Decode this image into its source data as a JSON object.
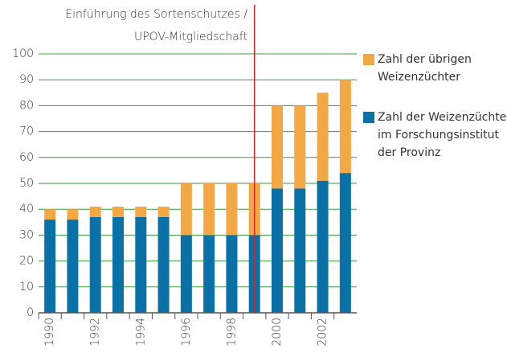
{
  "chart_data": {
    "type": "stacked_bar",
    "annotation": [
      "Einführung des Sortenschutzes /",
      "UPOV-Mitgliedschaft"
    ],
    "categories": [
      "1990",
      null,
      "1992",
      null,
      "1994",
      null,
      "1996",
      null,
      "1998",
      null,
      "2000",
      null,
      "2002",
      null
    ],
    "series": [
      {
        "name": "Zahl der Weizenzüchter\nim Forschungsinstitut\nder Provinz",
        "color": "#0a71a7",
        "values": [
          36,
          36,
          37,
          37,
          37,
          37,
          30,
          30,
          30,
          30,
          48,
          48,
          51,
          54
        ]
      },
      {
        "name": "Zahl der übrigen\nWeizenzüchter",
        "color": "#f2a845",
        "values": [
          4,
          4,
          4,
          4,
          4,
          4,
          20,
          20,
          20,
          20,
          32,
          32,
          34,
          36
        ]
      }
    ],
    "ylim": [
      0,
      100
    ],
    "yticks": [
      0,
      10,
      20,
      30,
      40,
      50,
      60,
      70,
      80,
      90,
      100
    ],
    "grid": true
  }
}
